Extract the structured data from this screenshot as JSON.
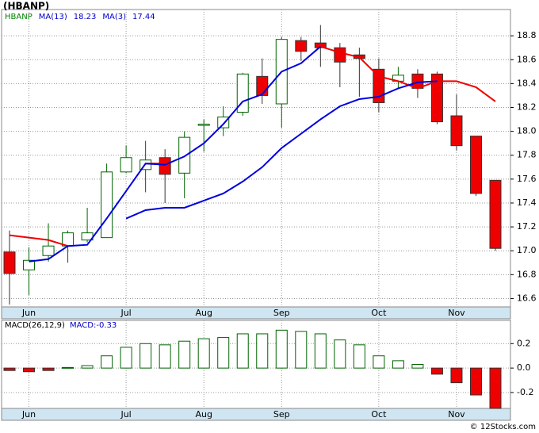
{
  "chart_data": {
    "type": "candlestick",
    "title": "(HBANP)",
    "legend": [
      {
        "text": "HBANP",
        "color": "#008000"
      },
      {
        "text": "MA(13)",
        "color": "#0000cc"
      },
      {
        "text": "18.23",
        "color": "#0000cc"
      },
      {
        "text": "MA(3)",
        "color": "#0000cc"
      },
      {
        "text": "17.44",
        "color": "#0000cc"
      }
    ],
    "categories": [
      null,
      "Jun",
      null,
      null,
      null,
      null,
      "Jul",
      null,
      null,
      null,
      "Aug",
      null,
      null,
      null,
      "Sep",
      null,
      null,
      null,
      null,
      "Oct",
      null,
      null,
      null,
      "Nov",
      null,
      null
    ],
    "candles": {
      "open": [
        16.99,
        16.84,
        16.96,
        17.04,
        17.09,
        17.11,
        17.66,
        17.68,
        17.78,
        17.65,
        18.05,
        18.03,
        18.16,
        18.46,
        18.23,
        18.76,
        18.74,
        18.7,
        18.64,
        18.52,
        18.42,
        18.48,
        18.48,
        18.13,
        17.96,
        17.59
      ],
      "high": [
        17.17,
        17.03,
        17.23,
        17.17,
        17.36,
        17.73,
        17.88,
        17.92,
        17.85,
        18.0,
        18.1,
        18.21,
        18.49,
        18.61,
        18.79,
        18.79,
        18.89,
        18.74,
        18.7,
        18.61,
        18.54,
        18.52,
        18.5,
        18.31,
        17.96,
        17.59
      ],
      "low": [
        16.55,
        16.63,
        16.91,
        16.9,
        17.07,
        17.11,
        17.65,
        17.49,
        17.4,
        17.44,
        17.83,
        17.96,
        18.13,
        18.23,
        18.03,
        18.59,
        18.54,
        18.37,
        18.29,
        18.16,
        18.36,
        18.28,
        18.06,
        17.84,
        17.46,
        17.0
      ],
      "close": [
        16.81,
        16.92,
        17.04,
        17.15,
        17.15,
        17.66,
        17.78,
        17.76,
        17.64,
        17.95,
        18.06,
        18.12,
        18.48,
        18.3,
        18.77,
        18.67,
        18.7,
        18.58,
        18.61,
        18.24,
        18.47,
        18.36,
        18.08,
        17.88,
        17.48,
        17.02
      ],
      "up_color": "#006400",
      "down_color": "#ee0000"
    },
    "lines": [
      {
        "color": "#ee0000",
        "values": [
          17.13,
          17.11,
          17.09,
          17.04,
          null,
          null,
          null,
          17.73,
          17.73,
          null,
          null,
          null,
          null,
          null,
          null,
          null,
          18.71,
          18.66,
          18.62,
          18.46,
          18.42,
          18.36,
          18.42,
          18.42,
          18.37,
          18.25
        ]
      },
      {
        "color": "#0000dd",
        "values": [
          null,
          16.91,
          16.93,
          17.04,
          17.05,
          17.27,
          17.5,
          17.73,
          17.72,
          17.79,
          17.9,
          18.06,
          18.25,
          18.31,
          18.5,
          18.57,
          18.71,
          null,
          null,
          null,
          null,
          null,
          null,
          null,
          null,
          null
        ]
      },
      {
        "color": "#0000dd",
        "values": [
          null,
          null,
          null,
          null,
          null,
          null,
          17.27,
          17.34,
          17.36,
          17.36,
          17.42,
          17.48,
          17.58,
          17.7,
          17.86,
          17.98,
          18.1,
          18.21,
          18.27,
          18.29,
          18.36,
          18.41,
          18.42,
          null,
          null,
          null
        ]
      }
    ],
    "ylim": [
      16.53,
      19.02
    ],
    "yticks": [
      16.6,
      16.8,
      {
        "value": 17,
        "label": "17.0"
      },
      17.2,
      17.4,
      17.6,
      17.8,
      {
        "value": 18,
        "label": "18.0"
      },
      18.2,
      18.4,
      18.6,
      18.8
    ],
    "grid": true,
    "macd": {
      "type": "bar",
      "legend": [
        "MACD(26,12,9)",
        "MACD:-0.33"
      ],
      "values": [
        -0.02,
        -0.03,
        -0.02,
        0.005,
        0.02,
        0.1,
        0.17,
        0.2,
        0.19,
        0.22,
        0.24,
        0.25,
        0.28,
        0.28,
        0.31,
        0.3,
        0.28,
        0.23,
        0.19,
        0.1,
        0.06,
        0.03,
        -0.05,
        -0.12,
        -0.22,
        -0.33
      ],
      "ylim": [
        -0.33,
        0.39
      ],
      "yticks": [
        -0.2,
        {
          "value": 0,
          "label": "0.0"
        },
        0.2
      ],
      "up_color": "#006400",
      "down_color": "#ee0000"
    },
    "footer": "© 12Stocks.com"
  }
}
